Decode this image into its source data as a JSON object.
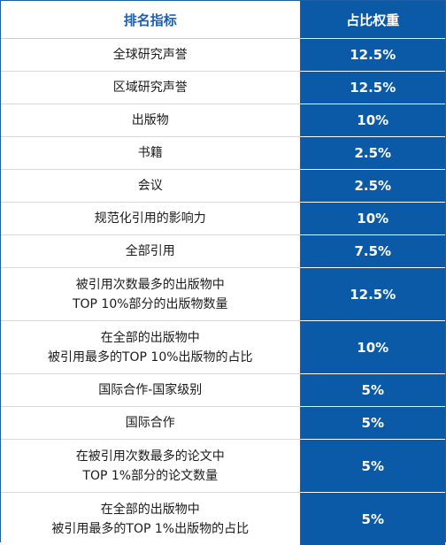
{
  "header": {
    "criteria": "排名指标",
    "weight": "占比权重"
  },
  "rows": [
    {
      "lines": [
        "全球研究声誉"
      ],
      "weight": "12.5%"
    },
    {
      "lines": [
        "区域研究声誉"
      ],
      "weight": "12.5%"
    },
    {
      "lines": [
        "出版物"
      ],
      "weight": "10%"
    },
    {
      "lines": [
        "书籍"
      ],
      "weight": "2.5%"
    },
    {
      "lines": [
        "会议"
      ],
      "weight": "2.5%"
    },
    {
      "lines": [
        "规范化引用的影响力"
      ],
      "weight": "10%"
    },
    {
      "lines": [
        "全部引用"
      ],
      "weight": "7.5%"
    },
    {
      "lines": [
        "被引用次数最多的出版物中",
        "TOP 10%部分的出版物数量"
      ],
      "weight": "12.5%"
    },
    {
      "lines": [
        "在全部的出版物中",
        "被引用最多的TOP 10%出版物的占比"
      ],
      "weight": "10%"
    },
    {
      "lines": [
        "国际合作-国家级别"
      ],
      "weight": "5%"
    },
    {
      "lines": [
        "国际合作"
      ],
      "weight": "5%"
    },
    {
      "lines": [
        "在被引用次数最多的论文中",
        "TOP 1%部分的论文数量"
      ],
      "weight": "5%"
    },
    {
      "lines": [
        "在全部的出版物中",
        "被引用最多的TOP 1%出版物的占比"
      ],
      "weight": "5%"
    }
  ]
}
